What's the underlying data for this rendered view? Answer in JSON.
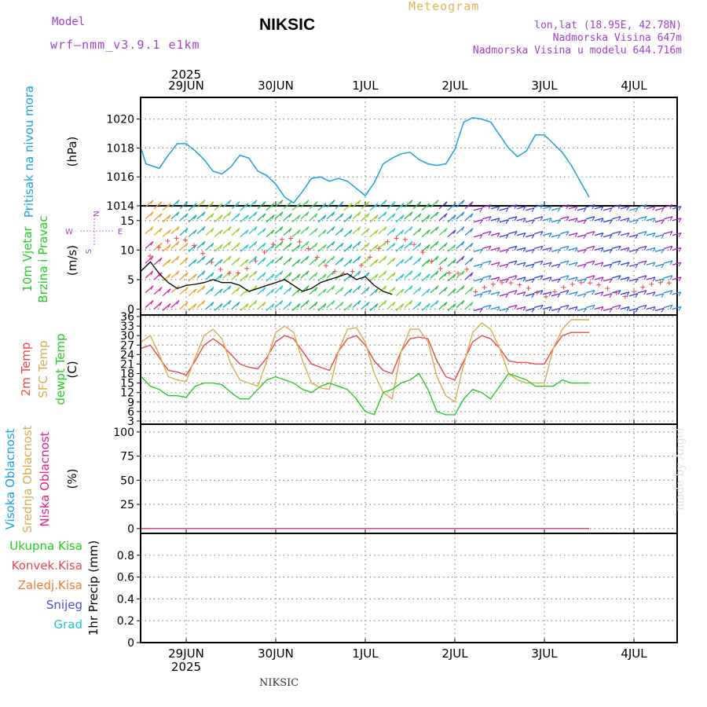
{
  "header": {
    "title": "NIKSIC",
    "subtitle": "Meteogram",
    "model_label": "Model",
    "model_name": "wrf—nmm_v3.9.1  e1km",
    "coords": "lon,lat (18.95E, 42.78N)",
    "elevation": "Nadmorska Visina 647m",
    "model_elevation": "Nadmorska Visina u modelu 644.716m"
  },
  "footer": {
    "station": "NIKSIC",
    "credit": "made by Angel"
  },
  "colors": {
    "pressure": "#1aa0e8",
    "temp2m": "#e84848",
    "sfc_temp": "#dcaa50",
    "dewpoint": "#22cc22",
    "wind_black": "#000000",
    "grid": "#888888",
    "purple_text": "#a040d0",
    "cloud_high": "#1aa0e8",
    "cloud_mid": "#dcaa50",
    "cloud_low": "#e0208c",
    "precip_total": "#22cc22",
    "precip_conv": "#e84848",
    "precip_frz": "#f08030",
    "precip_snow": "#4848e0",
    "precip_hail": "#20c8c8"
  },
  "chart_data": [
    {
      "type": "line",
      "panel": "pressure",
      "y_label_left": "Pritisak na nivou mora",
      "unit": "(hPa)",
      "ylim": [
        1014,
        1021.5
      ],
      "yticks": [
        1014,
        1016,
        1018,
        1020
      ],
      "x_days": [
        "29JUN",
        "30JUN",
        "1JUL",
        "2JUL",
        "3JUL",
        "4JUL"
      ],
      "x_year": "2025",
      "grid": true,
      "x": [
        -0.5,
        -0.45,
        -0.3,
        -0.2,
        -0.1,
        0,
        0.1,
        0.2,
        0.3,
        0.4,
        0.5,
        0.6,
        0.7,
        0.8,
        0.9,
        1,
        1.1,
        1.2,
        1.3,
        1.4,
        1.5,
        1.6,
        1.7,
        1.8,
        1.9,
        2,
        2.1,
        2.2,
        2.3,
        2.4,
        2.5,
        2.6,
        2.7,
        2.8,
        2.9,
        3,
        3.1,
        3.2,
        3.3,
        3.4,
        3.5,
        3.6,
        3.7,
        3.8,
        3.9,
        4,
        4.1,
        4.2,
        4.3,
        4.4,
        4.5
      ],
      "values": [
        1017.9,
        1016.9,
        1016.6,
        1017.5,
        1018.3,
        1018.3,
        1017.8,
        1017.2,
        1016.4,
        1016.2,
        1016.7,
        1017.5,
        1017.3,
        1016.4,
        1016.1,
        1015.5,
        1014.6,
        1014.2,
        1015.0,
        1015.9,
        1016.0,
        1015.7,
        1015.9,
        1015.7,
        1015.2,
        1014.7,
        1015.6,
        1016.9,
        1017.3,
        1017.6,
        1017.7,
        1017.2,
        1016.9,
        1016.8,
        1016.9,
        1017.9,
        1019.8,
        1020.1,
        1020.0,
        1019.8,
        1018.9,
        1018.0,
        1017.4,
        1017.8,
        1018.9,
        1018.9,
        1018.3,
        1017.7,
        1016.8,
        1015.7,
        1014.6
      ]
    },
    {
      "type": "line",
      "panel": "wind",
      "y_label_left": [
        "10m Vjetar",
        "Brzina i Pravac"
      ],
      "unit": "(m/s)",
      "compass": [
        "N",
        "W",
        "E",
        "S"
      ],
      "ylim": [
        -1,
        17.5
      ],
      "yticks": [
        0,
        5,
        10,
        15
      ],
      "grid": true,
      "x": [
        -0.5,
        -0.4,
        -0.3,
        -0.2,
        -0.1,
        0,
        0.1,
        0.2,
        0.3,
        0.4,
        0.5,
        0.6,
        0.7,
        0.8,
        0.9,
        1,
        1.1,
        1.2,
        1.3,
        1.4,
        1.5,
        1.6,
        1.7,
        1.8,
        1.9,
        2,
        2.1,
        2.2,
        2.3
      ],
      "values": [
        6.5,
        8.0,
        6.0,
        4.5,
        3.5,
        4.0,
        4.2,
        4.5,
        5.0,
        4.5,
        4.5,
        4.0,
        3.0,
        3.5,
        4.0,
        4.5,
        5.0,
        4.0,
        3.0,
        3.5,
        4.5,
        5.0,
        5.5,
        6.0,
        5.0,
        5.5,
        4.0,
        3.0,
        2.5
      ]
    },
    {
      "type": "line",
      "panel": "temperature",
      "y_label_left": [
        "2m Temp",
        "SFC Temp",
        "dewpt Temp"
      ],
      "unit": "(C)",
      "ylim": [
        2,
        36.5
      ],
      "yticks": [
        3,
        6,
        9,
        12,
        15,
        18,
        21,
        24,
        27,
        30,
        33,
        36
      ],
      "grid": true,
      "x": [
        -0.5,
        -0.4,
        -0.3,
        -0.2,
        -0.1,
        0,
        0.1,
        0.2,
        0.3,
        0.4,
        0.5,
        0.6,
        0.7,
        0.8,
        0.9,
        1,
        1.1,
        1.2,
        1.3,
        1.4,
        1.5,
        1.6,
        1.7,
        1.8,
        1.9,
        2,
        2.1,
        2.2,
        2.3,
        2.4,
        2.5,
        2.6,
        2.7,
        2.8,
        2.9,
        3,
        3.1,
        3.2,
        3.3,
        3.4,
        3.5,
        3.6,
        3.7,
        3.8,
        3.9,
        4,
        4.1,
        4.2,
        4.3,
        4.4,
        4.5
      ],
      "series": [
        {
          "name": "2m Temp",
          "values": [
            26,
            27,
            23,
            19,
            18.5,
            17.5,
            22,
            27,
            29,
            27,
            24,
            21,
            20,
            19.5,
            23,
            28,
            30,
            29,
            25,
            21,
            20,
            19,
            25,
            29,
            30,
            27,
            22,
            19,
            18,
            25,
            29,
            29.5,
            29,
            22,
            17,
            16,
            22,
            28,
            30,
            29,
            26,
            22,
            21.5,
            21.5,
            21,
            21,
            26,
            30,
            31,
            31,
            31
          ]
        },
        {
          "name": "SFC Temp",
          "values": [
            28,
            30,
            24,
            17,
            16,
            15.5,
            23,
            30,
            32,
            29,
            21,
            16,
            15,
            14,
            22,
            31,
            33,
            31,
            22,
            15,
            13.5,
            13,
            25,
            32,
            32.5,
            28,
            18,
            12,
            10,
            25,
            32,
            32,
            28,
            17,
            11,
            9,
            21,
            31,
            34,
            32,
            26,
            18,
            16,
            15,
            15,
            15,
            26,
            32,
            35,
            35,
            35
          ]
        },
        {
          "name": "dewpt Temp",
          "values": [
            17,
            14,
            13,
            11,
            11,
            10.5,
            14,
            15,
            15,
            14.5,
            12,
            10,
            10,
            13,
            16,
            17,
            16,
            15,
            13,
            12,
            14,
            15,
            14,
            13,
            10,
            6,
            5,
            12,
            13,
            15,
            16,
            18,
            13,
            6,
            5,
            5,
            10,
            13,
            12,
            10,
            14,
            18,
            17,
            16,
            14,
            14,
            14,
            16,
            15,
            15,
            15
          ]
        }
      ]
    },
    {
      "type": "line",
      "panel": "clouds",
      "y_label_left": [
        "Visoka Oblacnost",
        "Srednja Oblacnost",
        "Niska Oblacnost"
      ],
      "unit": "(%)",
      "ylim": [
        -5,
        108
      ],
      "yticks": [
        0,
        25,
        50,
        75,
        100
      ],
      "grid": true,
      "x": [
        -0.5,
        4.5
      ],
      "series": [
        {
          "name": "Visoka Oblacnost",
          "values": [
            0,
            0
          ]
        },
        {
          "name": "Srednja Oblacnost",
          "values": [
            0,
            0
          ]
        },
        {
          "name": "Niska Oblacnost",
          "values": [
            0,
            0
          ]
        }
      ]
    },
    {
      "type": "bar",
      "panel": "precip",
      "y_label_left": [
        "Ukupna Kisa",
        "Konvek.Kisa",
        "Zaledj.Kisa",
        "Snijeg",
        "Grad"
      ],
      "unit": "1hr Precip (mm)",
      "ylim": [
        0,
        1.0
      ],
      "yticks": [
        0,
        0.2,
        0.4,
        0.6,
        0.8
      ],
      "grid": true,
      "values": []
    }
  ]
}
